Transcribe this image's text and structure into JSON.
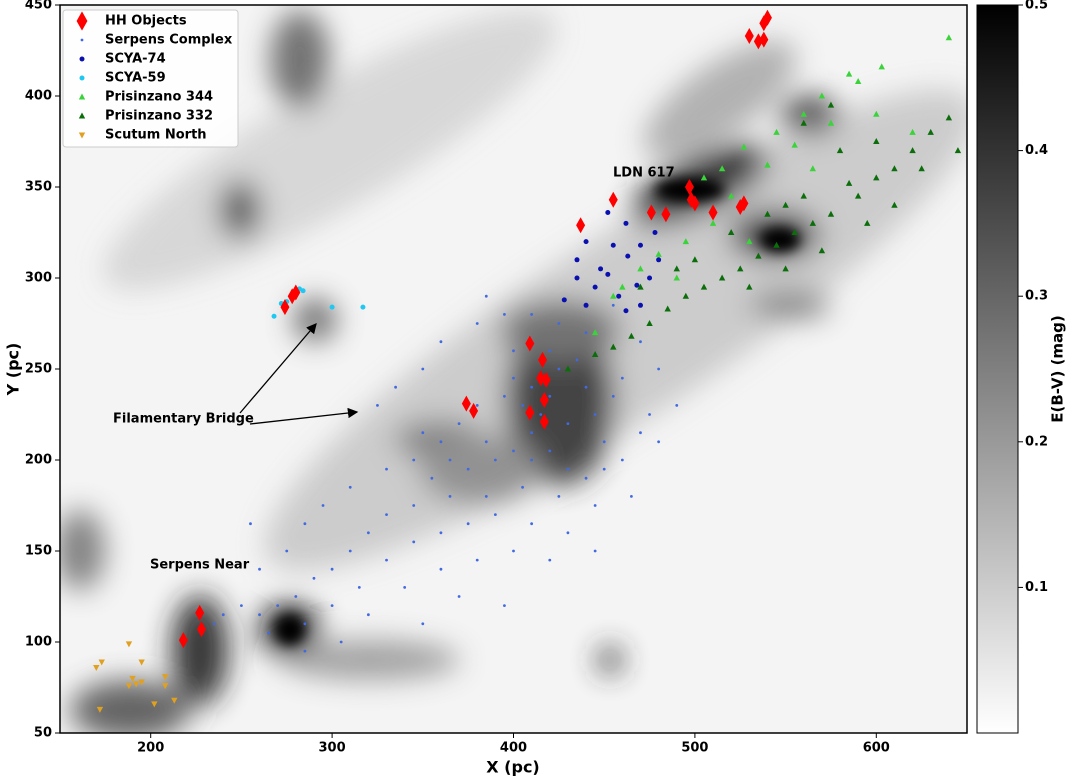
{
  "chart_data": {
    "type": "scatter",
    "xlabel": "X (pc)",
    "ylabel": "Y (pc)",
    "xlim": [
      150,
      650
    ],
    "xticks": [
      200,
      300,
      400,
      500,
      600
    ],
    "ylim": [
      50,
      450
    ],
    "yticks": [
      50,
      100,
      150,
      200,
      250,
      300,
      350,
      400,
      450
    ],
    "colorbar": {
      "label": "E(B-V) (mag)",
      "lim": [
        0,
        0.5
      ],
      "ticks": [
        0.1,
        0.2,
        0.3,
        0.4,
        0.5
      ]
    },
    "legend": "upper left",
    "annotations": [
      "LDN 617",
      "Serpens Near",
      "Filamentary Bridge"
    ],
    "series": [
      {
        "name": "HH Objects",
        "color": "#ff0000",
        "marker": "diamond",
        "x": [
          540,
          538,
          530,
          535,
          538,
          455,
          437,
          476,
          484,
          497,
          498,
          500,
          510,
          525,
          527,
          280,
          278,
          274,
          409,
          416,
          415,
          418,
          417,
          374,
          378,
          409,
          417,
          227,
          228,
          218
        ],
        "y": [
          443,
          440,
          433,
          430,
          431,
          343,
          329,
          336,
          335,
          350,
          343,
          341,
          336,
          339,
          341,
          292,
          290,
          284,
          264,
          255,
          245,
          244,
          233,
          231,
          227,
          226,
          221,
          116,
          107,
          101
        ]
      },
      {
        "name": "Serpens Complex",
        "color": "#4169e1",
        "marker": "dot",
        "x": [
          410,
          405,
          415,
          420,
          400,
          425,
          395,
          410,
          430,
          440,
          420,
          400,
          435,
          445,
          450,
          455,
          460,
          380,
          370,
          360,
          350,
          345,
          355,
          365,
          375,
          385,
          390,
          400,
          410,
          420,
          430,
          440,
          450,
          460,
          470,
          475,
          480,
          465,
          445,
          425,
          405,
          385,
          365,
          345,
          330,
          320,
          310,
          300,
          290,
          280,
          270,
          260,
          250,
          240,
          235,
          265,
          285,
          300,
          315,
          330,
          345,
          360,
          375,
          390,
          410,
          430,
          445,
          420,
          400,
          380,
          360,
          340,
          320,
          305,
          285,
          350,
          335,
          325,
          360,
          380,
          385,
          395,
          410,
          425,
          440,
          455,
          470,
          480,
          490,
          330,
          310,
          295,
          285,
          275,
          260,
          255,
          395,
          370,
          350
        ],
        "y": [
          240,
          230,
          225,
          235,
          245,
          250,
          235,
          215,
          220,
          240,
          260,
          260,
          255,
          225,
          210,
          235,
          245,
          230,
          220,
          210,
          215,
          200,
          190,
          200,
          195,
          210,
          200,
          205,
          200,
          205,
          195,
          190,
          195,
          200,
          215,
          225,
          210,
          180,
          175,
          180,
          185,
          180,
          180,
          175,
          170,
          160,
          150,
          140,
          135,
          125,
          120,
          115,
          120,
          115,
          110,
          105,
          110,
          120,
          130,
          145,
          155,
          160,
          165,
          170,
          165,
          160,
          150,
          145,
          150,
          145,
          140,
          130,
          115,
          100,
          95,
          250,
          240,
          230,
          265,
          275,
          290,
          280,
          280,
          275,
          270,
          285,
          265,
          250,
          230,
          195,
          185,
          175,
          165,
          150,
          140,
          165,
          120,
          125,
          110
        ]
      },
      {
        "name": "SCYA-74",
        "color": "#0a10b0",
        "marker": "circle",
        "x": [
          452,
          440,
          455,
          463,
          448,
          435,
          445,
          458,
          468,
          475,
          470,
          462,
          480,
          428,
          440,
          452,
          470,
          478,
          435,
          462
        ],
        "y": [
          336,
          320,
          318,
          312,
          305,
          300,
          295,
          290,
          296,
          300,
          285,
          282,
          310,
          288,
          285,
          302,
          318,
          325,
          310,
          330
        ]
      },
      {
        "name": "SCYA-59",
        "color": "#1ec8f0",
        "marker": "circle",
        "x": [
          268,
          272,
          275,
          278,
          284,
          282,
          300,
          317
        ],
        "y": [
          279,
          286,
          287,
          291,
          293,
          294,
          284,
          284
        ]
      },
      {
        "name": "Prisinzano 344",
        "color": "#3ad33a",
        "marker": "triangle-up",
        "x": [
          640,
          603,
          585,
          590,
          570,
          560,
          545,
          527,
          515,
          505,
          540,
          555,
          520,
          510,
          495,
          480,
          470,
          460,
          445,
          455,
          490,
          530,
          575,
          620,
          600,
          565
        ],
        "y": [
          432,
          416,
          412,
          408,
          400,
          390,
          380,
          372,
          360,
          355,
          362,
          373,
          345,
          330,
          320,
          313,
          305,
          295,
          270,
          290,
          300,
          320,
          385,
          380,
          390,
          360
        ]
      },
      {
        "name": "Prisinzano 332",
        "color": "#0b6e0b",
        "marker": "triangle-up",
        "x": [
          640,
          630,
          645,
          620,
          610,
          600,
          590,
          585,
          575,
          565,
          555,
          545,
          535,
          525,
          515,
          505,
          495,
          485,
          475,
          465,
          455,
          445,
          430,
          600,
          580,
          560,
          550,
          540,
          520,
          500,
          490,
          470,
          610,
          595,
          570,
          550,
          530,
          625,
          575,
          560
        ],
        "y": [
          388,
          380,
          370,
          370,
          360,
          355,
          345,
          352,
          335,
          330,
          325,
          318,
          312,
          305,
          300,
          295,
          290,
          283,
          275,
          268,
          262,
          258,
          250,
          375,
          370,
          345,
          340,
          335,
          325,
          310,
          305,
          295,
          340,
          330,
          315,
          305,
          295,
          360,
          395,
          385
        ]
      },
      {
        "name": "Scutum North",
        "color": "#e0a020",
        "marker": "triangle-down",
        "x": [
          170,
          173,
          188,
          195,
          190,
          192,
          188,
          195,
          208,
          213,
          202,
          172,
          208
        ],
        "y": [
          86,
          89,
          99,
          89,
          80,
          77,
          76,
          78,
          81,
          68,
          66,
          63,
          76
        ]
      }
    ]
  }
}
